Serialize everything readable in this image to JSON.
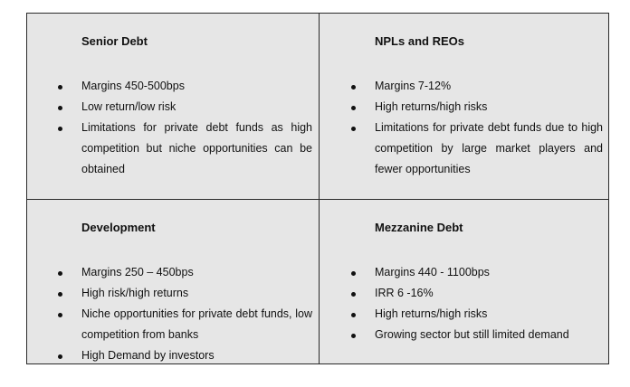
{
  "quadrants": [
    {
      "title": "Senior Debt",
      "items": [
        "Margins 450-500bps",
        "Low return/low risk",
        "Limitations for private debt funds as high competition but niche opportunities can be obtained"
      ]
    },
    {
      "title": "NPLs and REOs",
      "items": [
        "Margins 7-12%",
        "High returns/high risks",
        "Limitations for private debt funds due to high competition by large market players and fewer opportunities"
      ]
    },
    {
      "title": "Development",
      "items": [
        "Margins 250 – 450bps",
        "High risk/high returns",
        "Niche opportunities for private debt funds, low competition from banks",
        "High Demand by investors"
      ]
    },
    {
      "title": "Mezzanine Debt",
      "items": [
        "Margins 440 - 1100bps",
        "IRR 6 -16%",
        " High returns/high risks",
        "Growing sector but still limited demand"
      ]
    }
  ],
  "colors": {
    "cell_background": "#e6e6e6",
    "border": "#2a2a2a",
    "text": "#111111"
  }
}
